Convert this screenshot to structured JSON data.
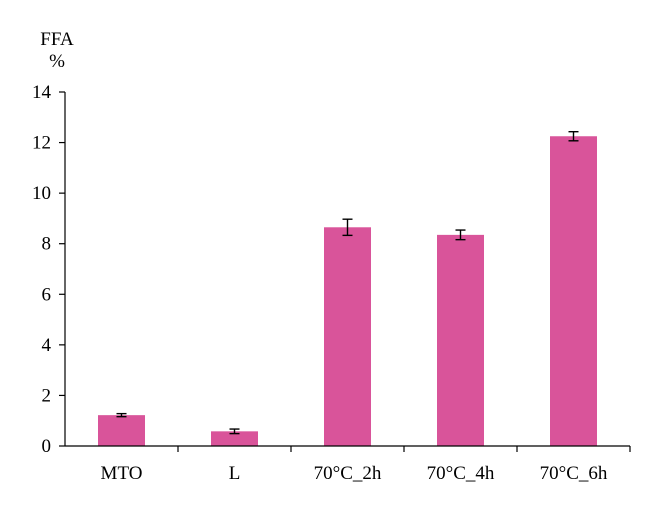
{
  "chart_data": {
    "type": "bar",
    "ylabel_lines": [
      "FFA",
      "%"
    ],
    "xlabel": "",
    "categories": [
      "MTO",
      "L",
      "70°C_2h",
      "70°C_4h",
      "70°C_6h"
    ],
    "values": [
      1.22,
      0.58,
      8.65,
      8.35,
      12.25
    ],
    "errors": [
      0.06,
      0.09,
      0.32,
      0.19,
      0.18
    ],
    "ylim": [
      0,
      14
    ],
    "yticks": [
      0,
      2,
      4,
      6,
      8,
      10,
      12,
      14
    ],
    "bar_color": "#d9549a",
    "grid": false,
    "legend": "none"
  }
}
